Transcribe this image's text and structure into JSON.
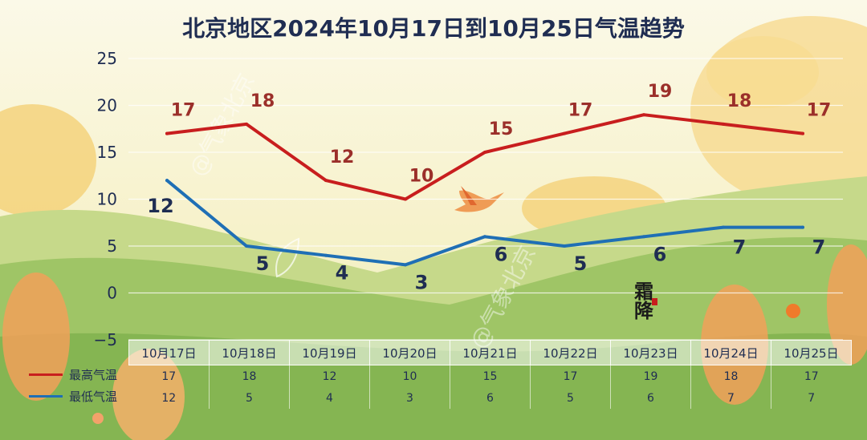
{
  "chart_data": {
    "type": "line",
    "title": "北京地区2024年10月17日到10月25日气温趋势",
    "categories": [
      "10月17日",
      "10月18日",
      "10月19日",
      "10月20日",
      "10月21日",
      "10月22日",
      "10月23日",
      "10月24日",
      "10月25日"
    ],
    "series": [
      {
        "name": "最高气温",
        "color": "#c81e1e",
        "values": [
          17,
          18,
          12,
          10,
          15,
          17,
          19,
          18,
          17
        ]
      },
      {
        "name": "最低气温",
        "color": "#1f6fb5",
        "values": [
          12,
          5,
          4,
          3,
          6,
          5,
          6,
          7,
          7
        ]
      }
    ],
    "ylim": [
      -5,
      25
    ],
    "yticks": [
      "25",
      "20",
      "15",
      "10",
      "5",
      "0",
      "−5"
    ],
    "grid": true,
    "legend": "bottom-left"
  },
  "watermark": "@气象北京",
  "badge": "霜降"
}
